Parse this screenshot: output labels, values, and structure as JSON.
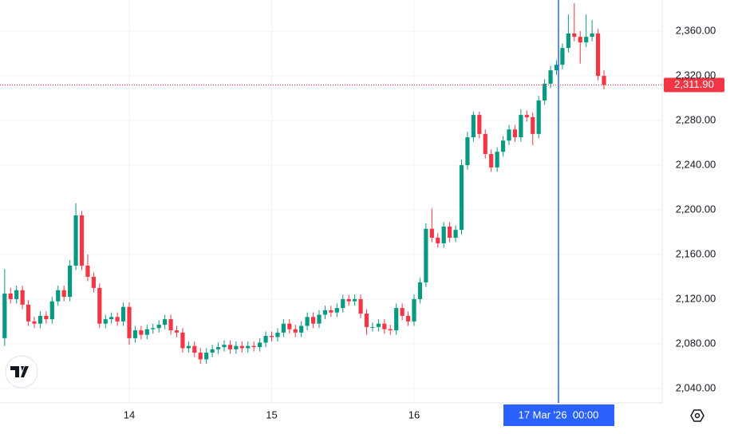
{
  "chart_data": {
    "type": "candlestick",
    "categories": [
      null,
      null,
      null,
      null,
      null,
      null,
      null,
      null,
      null,
      null,
      null,
      null,
      null,
      null,
      null,
      null,
      null,
      null,
      null,
      null,
      null,
      "14",
      null,
      null,
      null,
      null,
      null,
      null,
      null,
      null,
      null,
      null,
      null,
      null,
      null,
      null,
      null,
      null,
      null,
      null,
      null,
      null,
      null,
      null,
      null,
      "15",
      null,
      null,
      null,
      null,
      null,
      null,
      null,
      null,
      null,
      null,
      null,
      null,
      null,
      null,
      null,
      null,
      null,
      null,
      null,
      null,
      null,
      null,
      null,
      "16",
      null,
      null,
      null,
      null,
      null,
      null,
      null,
      null,
      null,
      null,
      null,
      null,
      null,
      null,
      null,
      null,
      null,
      null,
      null,
      null,
      null,
      null,
      null,
      null,
      null,
      null,
      null,
      null,
      null,
      null,
      null,
      null
    ],
    "open": [
      2085,
      2125,
      2120,
      2128,
      2115,
      2100,
      2098,
      2105,
      2102,
      2118,
      2128,
      2122,
      2150,
      2195,
      2150,
      2140,
      2130,
      2098,
      2102,
      2104,
      2100,
      2113,
      2085,
      2092,
      2088,
      2093,
      2094,
      2097,
      2102,
      2092,
      2090,
      2076,
      2078,
      2072,
      2066,
      2072,
      2075,
      2077,
      2079,
      2075,
      2078,
      2076,
      2078,
      2077,
      2081,
      2087,
      2086,
      2090,
      2098,
      2093,
      2090,
      2096,
      2104,
      2098,
      2106,
      2110,
      2108,
      2112,
      2120,
      2118,
      2120,
      2107,
      2095,
      2095,
      2098,
      2093,
      2092,
      2112,
      2105,
      2100,
      2120,
      2135,
      2183,
      2175,
      2170,
      2185,
      2175,
      2182,
      2240,
      2265,
      2285,
      2268,
      2250,
      2238,
      2252,
      2262,
      2272,
      2265,
      2285,
      2283,
      2268,
      2298,
      2313,
      2325,
      2330,
      2345,
      2358,
      2355,
      2350,
      2355,
      2358,
      2320
    ],
    "high": [
      2147,
      2130,
      2132,
      2132,
      2119,
      2104,
      2109,
      2109,
      2122,
      2132,
      2132,
      2155,
      2206,
      2199,
      2160,
      2144,
      2134,
      2106,
      2108,
      2108,
      2117,
      2117,
      2096,
      2096,
      2097,
      2098,
      2101,
      2106,
      2106,
      2096,
      2094,
      2082,
      2082,
      2076,
      2076,
      2079,
      2081,
      2083,
      2083,
      2082,
      2082,
      2082,
      2082,
      2085,
      2091,
      2091,
      2094,
      2102,
      2102,
      2097,
      2100,
      2108,
      2108,
      2110,
      2114,
      2114,
      2116,
      2124,
      2124,
      2124,
      2124,
      2111,
      2099,
      2102,
      2102,
      2097,
      2116,
      2116,
      2109,
      2124,
      2139,
      2188,
      2201,
      2179,
      2189,
      2189,
      2186,
      2245,
      2270,
      2288,
      2288,
      2272,
      2254,
      2256,
      2266,
      2276,
      2276,
      2290,
      2289,
      2287,
      2302,
      2317,
      2329,
      2334,
      2349,
      2375,
      2385,
      2360,
      2375,
      2370,
      2362,
      2325
    ],
    "low": [
      2078,
      2116,
      2116,
      2111,
      2096,
      2094,
      2094,
      2098,
      2098,
      2114,
      2118,
      2118,
      2146,
      2146,
      2136,
      2126,
      2094,
      2094,
      2098,
      2096,
      2096,
      2079,
      2081,
      2084,
      2084,
      2089,
      2090,
      2093,
      2088,
      2086,
      2072,
      2072,
      2068,
      2062,
      2062,
      2068,
      2071,
      2073,
      2071,
      2071,
      2072,
      2072,
      2073,
      2073,
      2077,
      2082,
      2082,
      2086,
      2089,
      2086,
      2086,
      2092,
      2094,
      2094,
      2102,
      2104,
      2104,
      2108,
      2114,
      2114,
      2103,
      2088,
      2091,
      2091,
      2089,
      2088,
      2088,
      2101,
      2096,
      2096,
      2116,
      2131,
      2171,
      2166,
      2166,
      2171,
      2171,
      2178,
      2236,
      2261,
      2264,
      2246,
      2234,
      2234,
      2248,
      2258,
      2261,
      2261,
      2279,
      2258,
      2264,
      2294,
      2309,
      2321,
      2326,
      2341,
      2351,
      2331,
      2346,
      2351,
      2316,
      2308
    ],
    "close": [
      2125,
      2120,
      2128,
      2115,
      2100,
      2098,
      2105,
      2102,
      2118,
      2128,
      2122,
      2150,
      2195,
      2150,
      2140,
      2130,
      2098,
      2102,
      2104,
      2100,
      2113,
      2085,
      2092,
      2088,
      2093,
      2094,
      2097,
      2102,
      2092,
      2090,
      2076,
      2078,
      2072,
      2066,
      2072,
      2075,
      2077,
      2079,
      2075,
      2078,
      2076,
      2078,
      2077,
      2081,
      2087,
      2086,
      2090,
      2098,
      2093,
      2090,
      2096,
      2104,
      2098,
      2106,
      2110,
      2108,
      2112,
      2120,
      2118,
      2120,
      2107,
      2095,
      2095,
      2098,
      2093,
      2092,
      2112,
      2105,
      2100,
      2120,
      2135,
      2183,
      2175,
      2170,
      2185,
      2175,
      2182,
      2240,
      2265,
      2285,
      2268,
      2250,
      2238,
      2252,
      2262,
      2272,
      2265,
      2285,
      2283,
      2268,
      2298,
      2313,
      2325,
      2330,
      2345,
      2358,
      2355,
      2350,
      2355,
      2358,
      2320,
      2311.9
    ],
    "up_color": "#089981",
    "down_color": "#f23645",
    "ylim": [
      2027,
      2388
    ],
    "yticks": [
      {
        "value": 2040,
        "label": "2,040.00"
      },
      {
        "value": 2080,
        "label": "2,080.00"
      },
      {
        "value": 2120,
        "label": "2,120.00"
      },
      {
        "value": 2160,
        "label": "2,160.00"
      },
      {
        "value": 2200,
        "label": "2,200.00"
      },
      {
        "value": 2240,
        "label": "2,240.00"
      },
      {
        "value": 2280,
        "label": "2,280.00"
      },
      {
        "value": 2320,
        "label": "2,320.00"
      },
      {
        "value": 2360,
        "label": "2,360.00"
      }
    ],
    "grid": true,
    "last_price": {
      "value": 2311.9,
      "label": "2,311.90"
    },
    "crosshair_label": "17 Mar '26  00:00"
  }
}
